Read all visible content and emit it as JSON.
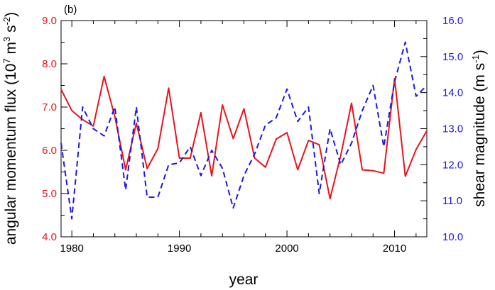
{
  "chart_data": {
    "type": "line",
    "panel_label": "(b)",
    "xlabel": "year",
    "x_ticks": [
      1980,
      1990,
      2000,
      2010
    ],
    "xlim": [
      1979,
      2013
    ],
    "left_axis": {
      "label_main": "angular momentum flux (10",
      "label_exp1": "7",
      "label_mid": " m",
      "label_exp2": "3",
      "label_mid2": " s",
      "label_exp3": "-2",
      "label_end": ")",
      "ylim": [
        4.0,
        9.0
      ],
      "ticks": [
        "4.0",
        "5.0",
        "6.0",
        "7.0",
        "8.0",
        "9.0"
      ],
      "color": "#e8141c"
    },
    "right_axis": {
      "label_main": "shear magnitude (m s",
      "label_exp": "-1",
      "label_end": ")",
      "ylim": [
        10.0,
        16.0
      ],
      "ticks": [
        "10.0",
        "11.0",
        "12.0",
        "13.0",
        "14.0",
        "15.0",
        "16.0"
      ],
      "color": "#1a1ae6"
    },
    "x": [
      1979,
      1980,
      1981,
      1982,
      1983,
      1984,
      1985,
      1986,
      1987,
      1988,
      1989,
      1990,
      1991,
      1992,
      1993,
      1994,
      1995,
      1996,
      1997,
      1998,
      1999,
      2000,
      2001,
      2002,
      2003,
      2004,
      2005,
      2006,
      2007,
      2008,
      2009,
      2010,
      2011,
      2012,
      2013
    ],
    "series": [
      {
        "axis": "left",
        "style": "solid",
        "color": "#e8141c",
        "values": [
          7.41,
          6.92,
          6.71,
          6.56,
          7.71,
          6.78,
          5.55,
          6.63,
          5.58,
          6.04,
          7.44,
          5.82,
          5.82,
          6.87,
          5.41,
          7.05,
          6.27,
          6.96,
          5.82,
          5.61,
          6.26,
          6.41,
          5.55,
          6.23,
          6.13,
          4.88,
          5.88,
          7.09,
          5.55,
          5.53,
          5.47,
          7.66,
          5.4,
          6.02,
          6.45
        ]
      },
      {
        "axis": "right",
        "style": "dashed",
        "color": "#1a1ae6",
        "values": [
          12.6,
          10.5,
          13.6,
          13.0,
          12.8,
          13.6,
          11.3,
          13.6,
          11.1,
          11.1,
          12.0,
          12.05,
          12.5,
          11.7,
          12.4,
          11.9,
          10.8,
          11.7,
          12.3,
          13.1,
          13.3,
          14.1,
          13.2,
          13.6,
          11.2,
          13.0,
          12.0,
          12.6,
          13.5,
          14.2,
          12.5,
          14.3,
          15.4,
          13.9,
          14.2
        ]
      }
    ]
  }
}
